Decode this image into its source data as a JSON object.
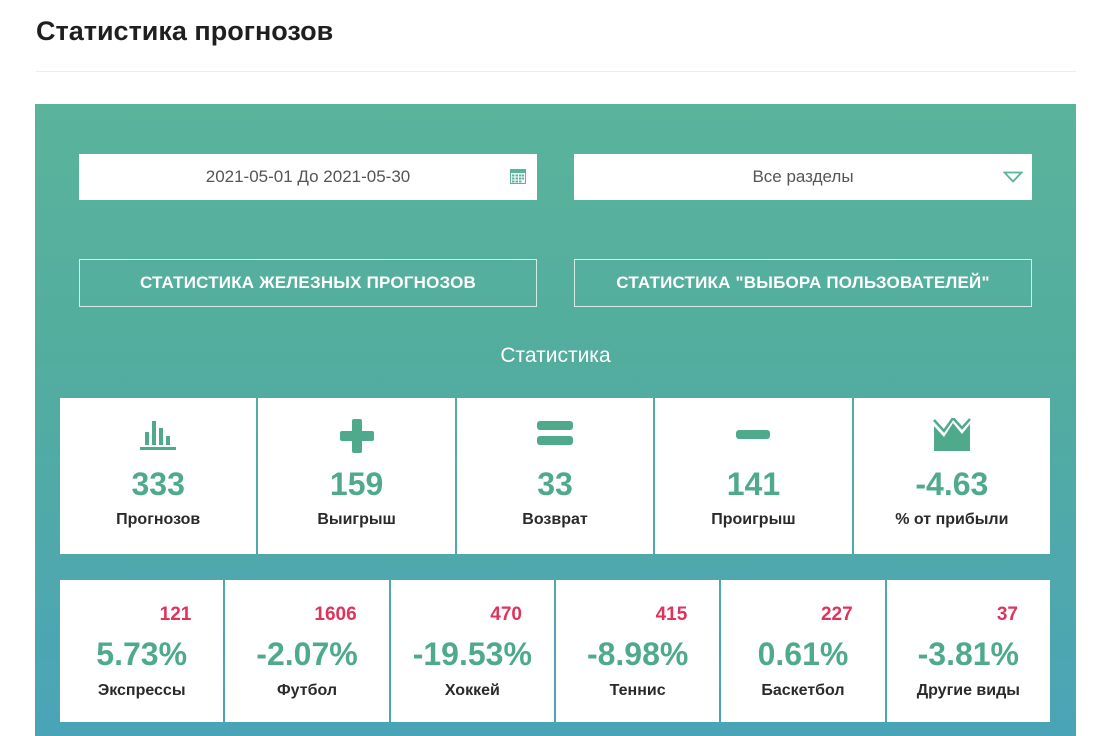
{
  "page": {
    "title": "Статистика прогнозов"
  },
  "filters": {
    "date_range": "2021-05-01 До 2021-05-30",
    "section": "Все разделы"
  },
  "buttons": {
    "iron": "СТАТИСТИКА ЖЕЛЕЗНЫХ ПРОГНОЗОВ",
    "users": "СТАТИСТИКА \"ВЫБОРА ПОЛЬЗОВАТЕЛЕЙ\""
  },
  "stats": {
    "heading": "Статистика",
    "items": [
      {
        "icon": "bar-chart-icon",
        "value": "333",
        "label": "Прогнозов"
      },
      {
        "icon": "plus-icon",
        "value": "159",
        "label": "Выигрыш"
      },
      {
        "icon": "equals-icon",
        "value": "33",
        "label": "Возврат"
      },
      {
        "icon": "minus-icon",
        "value": "141",
        "label": "Проигрыш"
      },
      {
        "icon": "area-chart-icon",
        "value": "-4.63",
        "label": "% от прибыли"
      }
    ]
  },
  "sports": [
    {
      "count": "121",
      "pct": "5.73%",
      "label": "Экспрессы"
    },
    {
      "count": "1606",
      "pct": "-2.07%",
      "label": "Футбол"
    },
    {
      "count": "470",
      "pct": "-19.53%",
      "label": "Хоккей"
    },
    {
      "count": "415",
      "pct": "-8.98%",
      "label": "Теннис"
    },
    {
      "count": "227",
      "pct": "0.61%",
      "label": "Баскетбол"
    },
    {
      "count": "37",
      "pct": "-3.81%",
      "label": "Другие виды"
    }
  ],
  "colors": {
    "accent_green": "#4faa8c",
    "count_red": "#e0335c",
    "panel_top": "#5ab39b",
    "panel_bottom": "#4aa4b8"
  }
}
